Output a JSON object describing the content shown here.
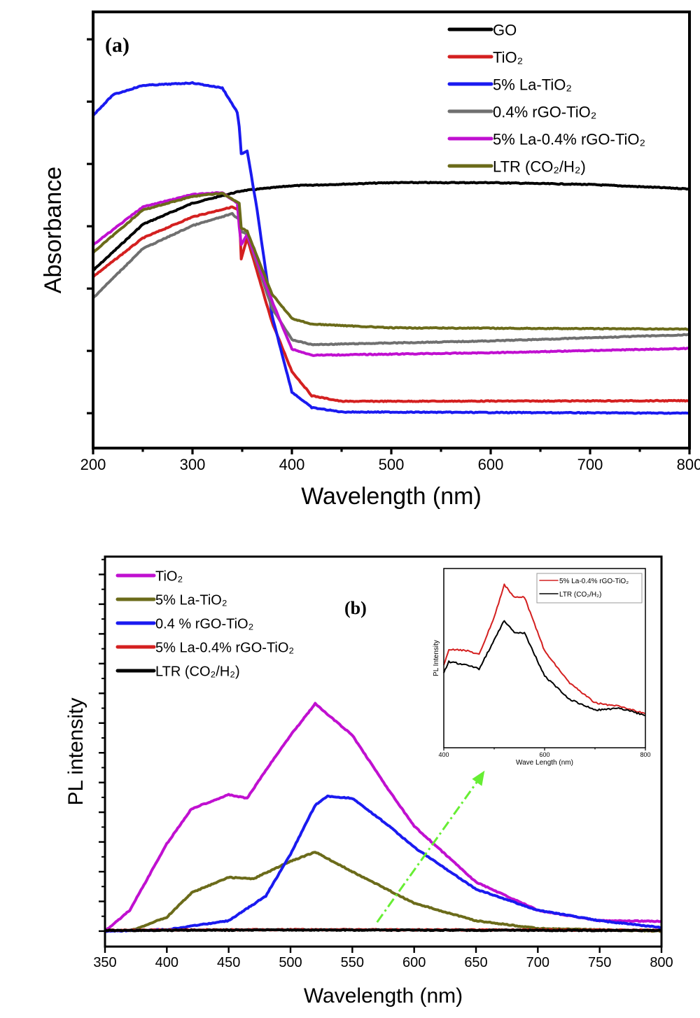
{
  "chart_data": [
    {
      "type": "line",
      "panel_label": "(a)",
      "xlabel": "Wavelength (nm)",
      "ylabel": "Absorbance",
      "xlim": [
        200,
        800
      ],
      "ylim": [
        -0.56,
        6.44
      ],
      "xticks": [
        200,
        300,
        400,
        500,
        600,
        700,
        800
      ],
      "yticks": [
        0,
        1,
        2,
        3,
        4,
        5,
        6
      ],
      "y_tick_labels_shown": false,
      "grid": false,
      "legend_position": "top-right",
      "series": [
        {
          "name": "GO",
          "color": "#000000",
          "x": [
            200,
            250,
            300,
            350,
            400,
            500,
            600,
            700,
            800
          ],
          "y": [
            2.29,
            3.03,
            3.37,
            3.57,
            3.65,
            3.7,
            3.7,
            3.67,
            3.6
          ]
        },
        {
          "name": "TiO₂",
          "color": "#d42020",
          "x": [
            200,
            250,
            300,
            340,
            347,
            349,
            355,
            380,
            400,
            420,
            450,
            800
          ],
          "y": [
            2.19,
            2.81,
            3.15,
            3.31,
            3.25,
            2.47,
            2.81,
            1.46,
            0.67,
            0.28,
            0.19,
            0.2
          ]
        },
        {
          "name": "5% La-TiO₂",
          "color": "#1a1af0",
          "x": [
            200,
            220,
            250,
            300,
            330,
            345,
            347,
            349,
            355,
            365,
            380,
            400,
            420,
            450,
            800
          ],
          "y": [
            4.78,
            5.11,
            5.26,
            5.3,
            5.22,
            4.83,
            4.6,
            4.16,
            4.21,
            3.26,
            1.57,
            0.34,
            0.09,
            0.02,
            0.0
          ]
        },
        {
          "name": "0.4% rGO-TiO₂",
          "color": "#707070",
          "x": [
            200,
            250,
            300,
            340,
            347,
            349,
            355,
            380,
            400,
            420,
            600,
            800
          ],
          "y": [
            1.85,
            2.64,
            3.01,
            3.2,
            3.1,
            2.92,
            2.87,
            1.69,
            1.18,
            1.1,
            1.16,
            1.26
          ]
        },
        {
          "name": "5% La-0.4% rGO-TiO₂",
          "color": "#c010d0",
          "x": [
            200,
            250,
            300,
            330,
            345,
            347,
            349,
            355,
            380,
            400,
            420,
            600,
            800
          ],
          "y": [
            2.7,
            3.31,
            3.51,
            3.54,
            3.37,
            3.0,
            2.7,
            2.87,
            1.8,
            1.03,
            0.93,
            0.97,
            1.04
          ]
        },
        {
          "name": "LTR (CO₂/H₂)",
          "color": "#6b6b1a",
          "x": [
            200,
            250,
            300,
            330,
            347,
            349,
            355,
            380,
            400,
            420,
            500,
            800
          ],
          "y": [
            2.58,
            3.26,
            3.48,
            3.53,
            3.37,
            2.98,
            2.92,
            1.91,
            1.52,
            1.43,
            1.37,
            1.35
          ]
        }
      ]
    },
    {
      "type": "line",
      "panel_label": "(b)",
      "xlabel": "Wavelength (nm)",
      "ylabel": "PL intensity",
      "xlim": [
        350,
        800
      ],
      "ylim": [
        -0.52,
        12.6
      ],
      "xticks": [
        350,
        400,
        450,
        500,
        550,
        600,
        650,
        700,
        750,
        800
      ],
      "yticks": [
        0,
        1,
        2,
        3,
        4,
        5,
        6,
        7,
        8,
        9,
        10,
        11,
        12
      ],
      "y_tick_labels_shown": false,
      "grid": false,
      "legend_position": "top-left",
      "series": [
        {
          "name": "TiO₂",
          "color": "#c010d0",
          "x": [
            350,
            370,
            400,
            420,
            450,
            465,
            480,
            500,
            520,
            530,
            550,
            580,
            600,
            650,
            700,
            750,
            800
          ],
          "y": [
            0,
            0.7,
            2.94,
            4.12,
            4.59,
            4.47,
            5.41,
            6.59,
            7.65,
            7.29,
            6.59,
            4.71,
            3.53,
            1.65,
            0.7,
            0.35,
            0.33
          ]
        },
        {
          "name": "5% La-TiO₂",
          "color": "#6b6b1a",
          "x": [
            370,
            400,
            420,
            450,
            470,
            500,
            520,
            550,
            600,
            650,
            700,
            800
          ],
          "y": [
            0,
            0.47,
            1.29,
            1.81,
            1.76,
            2.35,
            2.66,
            2.0,
            0.94,
            0.35,
            0.09,
            0
          ]
        },
        {
          "name": "0.4 % rGO-TiO₂",
          "color": "#1a1af0",
          "x": [
            350,
            400,
            450,
            480,
            500,
            520,
            530,
            550,
            580,
            600,
            650,
            700,
            750,
            800
          ],
          "y": [
            0,
            0.05,
            0.35,
            1.18,
            2.59,
            4.24,
            4.54,
            4.47,
            3.53,
            2.82,
            1.41,
            0.7,
            0.35,
            0.12
          ]
        },
        {
          "name": "5% La-0.4% rGO-TiO₂",
          "color": "#d42020",
          "x": [
            350,
            500,
            800
          ],
          "y": [
            0.03,
            0.05,
            0.03
          ]
        },
        {
          "name": "LTR (CO₂/H₂)",
          "color": "#000000",
          "x": [
            350,
            500,
            800
          ],
          "y": [
            0.02,
            0.04,
            0.02
          ]
        }
      ],
      "annotation": {
        "type": "dash-dot arrow",
        "color": "#66ee33",
        "from": [
          570,
          0.3
        ],
        "to": [
          657,
          5.4
        ]
      },
      "inset": {
        "type": "line",
        "xlabel": "Wave Length (nm)",
        "ylabel": "PL Intensity",
        "xlim": [
          400,
          800
        ],
        "ylim": [
          0,
          1
        ],
        "xticks": [
          400,
          600,
          800
        ],
        "legend_position": "top-right",
        "series": [
          {
            "name": "5% La-0.4% rGO-TiO₂",
            "color": "#d42020",
            "x": [
              400,
              410,
              450,
              470,
              500,
              520,
              540,
              560,
              600,
              650,
              700,
              750,
              800
            ],
            "y": [
              0.46,
              0.55,
              0.54,
              0.52,
              0.73,
              0.91,
              0.84,
              0.84,
              0.54,
              0.36,
              0.25,
              0.23,
              0.19
            ]
          },
          {
            "name": "LTR (CO₂/H₂)",
            "color": "#000000",
            "x": [
              400,
              410,
              450,
              470,
              500,
              520,
              540,
              560,
              600,
              650,
              700,
              750,
              800
            ],
            "y": [
              0.42,
              0.48,
              0.46,
              0.44,
              0.6,
              0.71,
              0.64,
              0.64,
              0.4,
              0.27,
              0.21,
              0.22,
              0.18
            ]
          }
        ]
      }
    }
  ]
}
